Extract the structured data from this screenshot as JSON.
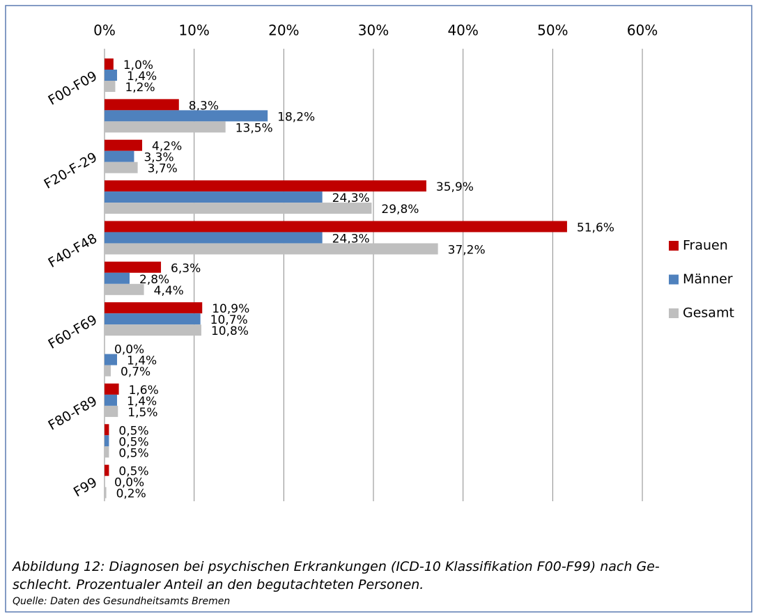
{
  "chart_data": {
    "type": "bar",
    "orientation": "horizontal",
    "categories": [
      "F00-F09",
      null,
      "F20-F-29",
      null,
      "F40-F48",
      null,
      "F60-F69",
      null,
      "F80-F89",
      null,
      "F99"
    ],
    "series": [
      {
        "name": "Frauen",
        "color": "#c00000",
        "values": [
          1.0,
          8.3,
          4.2,
          35.9,
          51.6,
          6.3,
          10.9,
          0.0,
          1.6,
          0.5,
          0.5
        ],
        "value_labels": [
          "1,0%",
          "8,3%",
          "4,2%",
          "35,9%",
          "51,6%",
          "6,3%",
          "10,9%",
          "0,0%",
          "1,6%",
          "0,5%",
          "0,5%"
        ]
      },
      {
        "name": "Männer",
        "color": "#4f81bd",
        "values": [
          1.4,
          18.2,
          3.3,
          24.3,
          24.3,
          2.8,
          10.7,
          1.4,
          1.4,
          0.5,
          0.0
        ],
        "value_labels": [
          "1,4%",
          "18,2%",
          "3,3%",
          "24,3%",
          "24,3%",
          "2,8%",
          "10,7%",
          "1,4%",
          "1,4%",
          "0,5%",
          "0,0%"
        ]
      },
      {
        "name": "Gesamt",
        "color": "#bfbfbf",
        "values": [
          1.2,
          13.5,
          3.7,
          29.8,
          37.2,
          4.4,
          10.8,
          0.7,
          1.5,
          0.5,
          0.2
        ],
        "value_labels": [
          "1,2%",
          "13,5%",
          "3,7%",
          "29,8%",
          "37,2%",
          "4,4%",
          "10,8%",
          "0,7%",
          "1,5%",
          "0,5%",
          "0,2%"
        ]
      }
    ],
    "xlim": [
      0,
      60
    ],
    "xticks": [
      {
        "value": 0,
        "label": "0%"
      },
      {
        "value": 10,
        "label": "10%"
      },
      {
        "value": 20,
        "label": "20%"
      },
      {
        "value": 30,
        "label": "30%"
      },
      {
        "value": 40,
        "label": "40%"
      },
      {
        "value": 50,
        "label": "50%"
      },
      {
        "value": 60,
        "label": "60%"
      }
    ],
    "grid": true,
    "legend": "right",
    "caption": [
      "Abbildung 12: Diagnosen bei psychischen Erkrankungen (ICD-10 Klassifikation F00-F99) nach Ge-",
      "schlecht. Prozentualer Anteil an den begutachteten Personen."
    ],
    "source": "Quelle: Daten des Gesundheitsamts Bremen"
  }
}
